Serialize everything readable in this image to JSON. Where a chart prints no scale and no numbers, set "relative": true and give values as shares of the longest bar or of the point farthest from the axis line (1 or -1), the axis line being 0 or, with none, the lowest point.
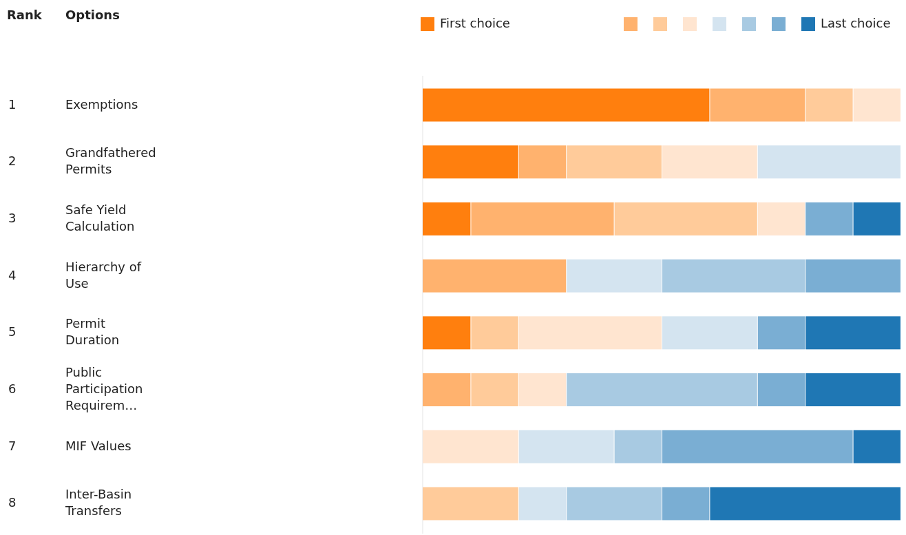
{
  "chart_data": {
    "type": "bar",
    "orientation": "horizontal",
    "stacked": true,
    "relative": true,
    "legend": "top",
    "tick_labels": "y",
    "annotations": [
      "Rank",
      "Options",
      "1",
      "2",
      "3",
      "4",
      "5",
      "6",
      "7",
      "8"
    ],
    "categories": [
      "Exemptions",
      "Grandfathered Permits",
      "Safe Yield Calculation",
      "Hierarchy of Use",
      "Permit Duration",
      "Public Participation Requirem…",
      "MIF Values",
      "Inter-Basin Transfers"
    ],
    "series": [
      {
        "name": "First choice",
        "color": "#ff7f0e",
        "values": [
          0.6,
          0.2,
          0.1,
          0,
          0.1,
          0,
          0,
          0
        ]
      },
      {
        "color": "#ffb26e",
        "values": [
          0.2,
          0.1,
          0.3,
          0.3,
          0,
          0.1,
          0,
          0
        ]
      },
      {
        "color": "#ffcb9a",
        "values": [
          0.1,
          0.2,
          0.3,
          0,
          0.1,
          0.1,
          0,
          0.2
        ]
      },
      {
        "color": "#ffe5d0",
        "values": [
          0.1,
          0.2,
          0.1,
          0,
          0.3,
          0.1,
          0.2,
          0
        ]
      },
      {
        "color": "#d4e4f0",
        "values": [
          0,
          0.3,
          0,
          0.2,
          0.2,
          0,
          0.2,
          0.1
        ]
      },
      {
        "color": "#a8cae2",
        "values": [
          0,
          0,
          0,
          0.3,
          0,
          0.4,
          0.1,
          0.2
        ]
      },
      {
        "color": "#7aaed3",
        "values": [
          0,
          0,
          0.1,
          0.2,
          0.1,
          0.1,
          0.4,
          0.1
        ]
      },
      {
        "name": "Last choice",
        "color": "#1f77b4",
        "values": [
          0,
          0,
          0.1,
          0,
          0.2,
          0.2,
          0.1,
          0.4
        ]
      }
    ]
  }
}
